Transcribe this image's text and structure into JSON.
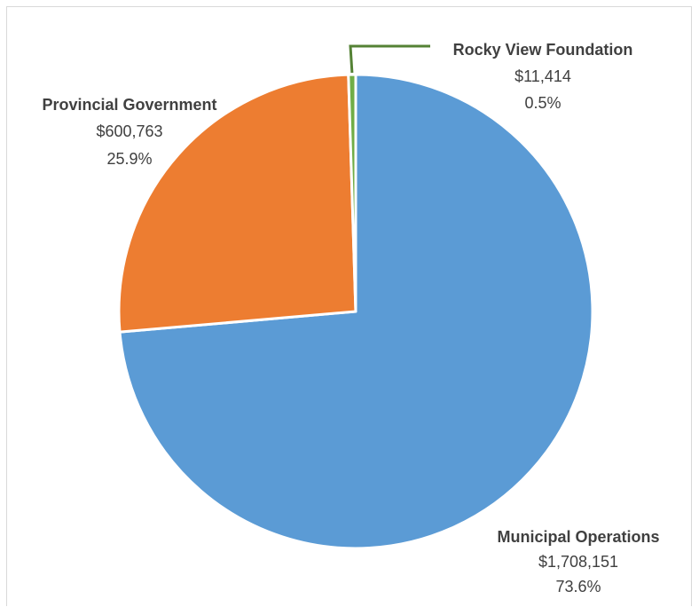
{
  "chart_data": {
    "type": "pie",
    "title": "",
    "categories": [
      "Municipal Operations",
      "Provincial Government",
      "Rocky View Foundation"
    ],
    "values": [
      1708151,
      600763,
      11414
    ],
    "value_labels": [
      "$1,708,151",
      "$600,763",
      "$11,414"
    ],
    "percent_labels": [
      "73.6%",
      "25.9%",
      "0.5%"
    ],
    "colors": [
      "#5b9bd5",
      "#ed7d31",
      "#70ad47"
    ],
    "start_angle_deg": 0,
    "direction": "clockwise",
    "legend": "none",
    "data_labels": "name, value, percent"
  }
}
